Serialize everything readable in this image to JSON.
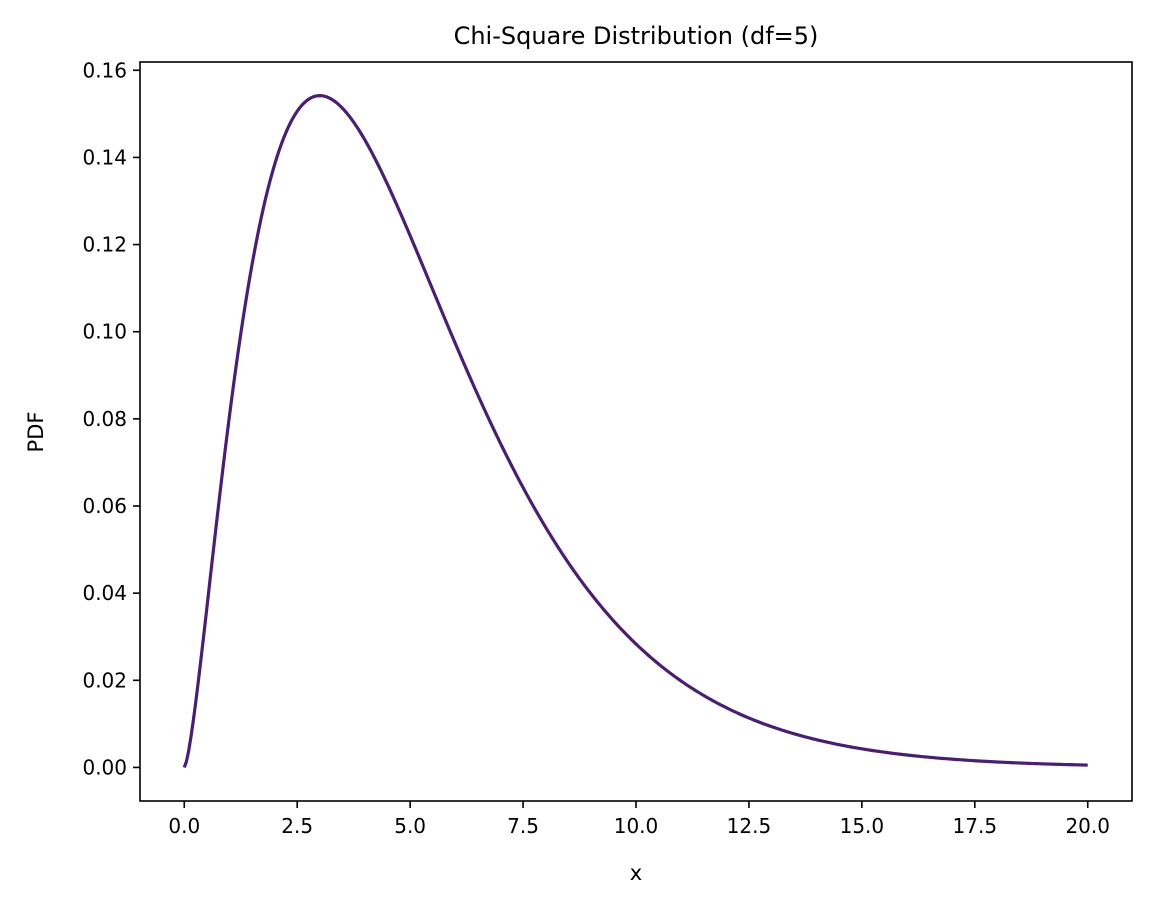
{
  "chart_data": {
    "type": "line",
    "title": "Chi-Square Distribution (df=5)",
    "xlabel": "x",
    "ylabel": "PDF",
    "xlim": [
      -0.98,
      20.98
    ],
    "ylim": [
      -0.0077,
      0.1619
    ],
    "x_ticks": [
      "0.0",
      "2.5",
      "5.0",
      "7.5",
      "10.0",
      "12.5",
      "15.0",
      "17.5",
      "20.0"
    ],
    "x_tick_values": [
      0,
      2.5,
      5,
      7.5,
      10,
      12.5,
      15,
      17.5,
      20
    ],
    "y_ticks": [
      "0.00",
      "0.02",
      "0.04",
      "0.06",
      "0.08",
      "0.10",
      "0.12",
      "0.14",
      "0.16"
    ],
    "y_tick_values": [
      0,
      0.02,
      0.04,
      0.06,
      0.08,
      0.1,
      0.12,
      0.14,
      0.16
    ],
    "grid": false,
    "series": [
      {
        "color": "#4a1f70",
        "df": 5,
        "x_range": [
          0,
          20
        ]
      }
    ]
  }
}
